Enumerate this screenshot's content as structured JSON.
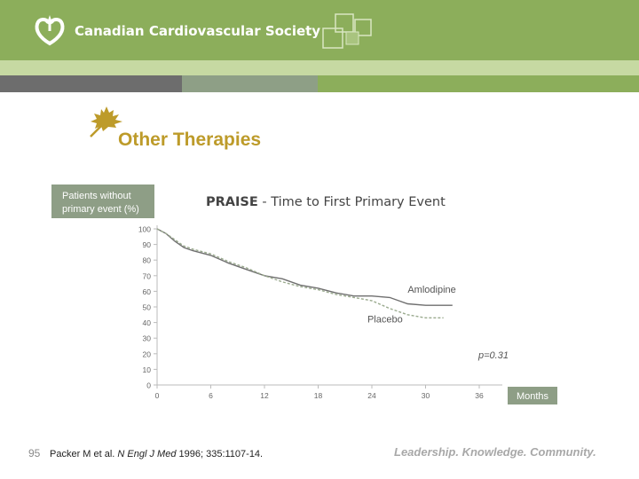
{
  "header": {
    "org_name": "Canadian Cardiovascular Society",
    "logo_icon": "heart-leaf-logo-icon",
    "decoration_icon": "overlapping-squares-icon",
    "colors": {
      "green": "#8cae5b",
      "light_green": "#c6d9a2",
      "gray": "#6d6d6d",
      "gray_green": "#8e9f86"
    }
  },
  "slide": {
    "title": "Other Therapies",
    "title_icon": "maple-leaf-icon",
    "title_color": "#bd9b2a"
  },
  "chart_data": {
    "type": "line",
    "title": "PRAISE - Time to First Primary Event",
    "ylabel": [
      "Patients without",
      "primary event (%)"
    ],
    "xlabel": "Months",
    "xlim": [
      0,
      36
    ],
    "ylim": [
      0,
      100
    ],
    "xticks": [
      "0",
      "6",
      "12",
      "18",
      "24",
      "30",
      "36"
    ],
    "yticks": [
      "0",
      "10",
      "20",
      "30",
      "40",
      "50",
      "60",
      "70",
      "80",
      "90",
      "100"
    ],
    "annotation": "p=0.31",
    "series": [
      {
        "name": "Amlodipine",
        "style": "solid",
        "color": "#6f6f6f",
        "x": [
          0,
          1,
          2,
          3,
          4,
          6,
          8,
          10,
          12,
          14,
          16,
          18,
          20,
          22,
          24,
          26,
          27,
          28,
          30,
          33
        ],
        "y": [
          100,
          97,
          92,
          88,
          86,
          83,
          78,
          74,
          70,
          68,
          64,
          62,
          59,
          57,
          57,
          56,
          54,
          52,
          51,
          51
        ]
      },
      {
        "name": "Placebo",
        "style": "dashed",
        "color": "#9aaa8e",
        "x": [
          0,
          1,
          2,
          3,
          4,
          6,
          8,
          10,
          12,
          14,
          16,
          18,
          20,
          22,
          24,
          26,
          28,
          29,
          30,
          32
        ],
        "y": [
          100,
          97,
          93,
          89,
          87,
          84,
          79,
          75,
          70,
          66,
          63,
          61,
          58,
          56,
          54,
          49,
          45,
          44,
          43,
          43
        ]
      }
    ]
  },
  "footer": {
    "slide_number": "95",
    "citation_authors": "Packer M et al. ",
    "citation_journal": "N Engl J Med",
    "citation_details": " 1996; 335:1107-14.",
    "tagline": "Leadership. Knowledge. Community."
  }
}
